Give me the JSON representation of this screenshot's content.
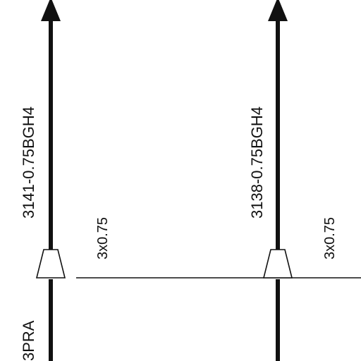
{
  "wires": [
    {
      "id": "left",
      "wire_label": "3141-0.75BGH4",
      "cable_label": "3x0.75",
      "bottom_label": "3PRA"
    },
    {
      "id": "right",
      "wire_label": "3138-0.75BGH4",
      "cable_label": "3x0.75",
      "bottom_label": ""
    }
  ],
  "colors": {
    "line": "#111111",
    "background": "#ffffff"
  }
}
